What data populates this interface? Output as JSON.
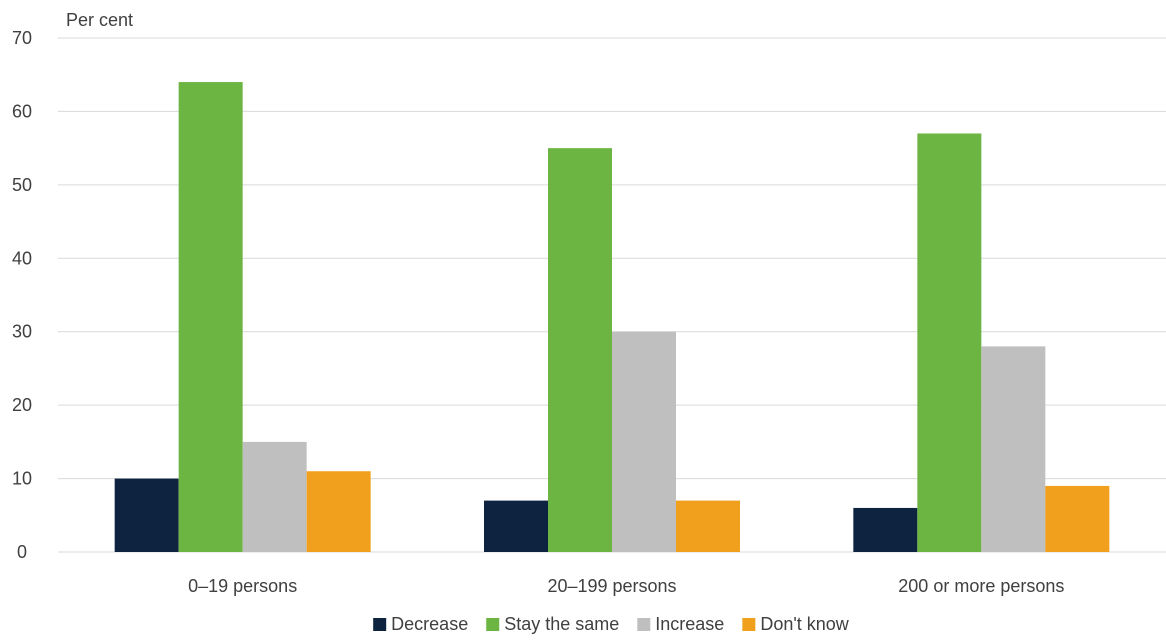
{
  "chart_data": {
    "type": "bar",
    "unit_label": "Per cent",
    "categories": [
      "0–19 persons",
      "20–199 persons",
      "200 or more persons"
    ],
    "series": [
      {
        "name": "Decrease",
        "color": "#0d2340",
        "values": [
          10,
          7,
          6
        ]
      },
      {
        "name": "Stay the same",
        "color": "#6db543",
        "values": [
          64,
          55,
          57
        ]
      },
      {
        "name": "Increase",
        "color": "#bfbfbf",
        "values": [
          15,
          30,
          28
        ]
      },
      {
        "name": "Don't know",
        "color": "#f0a01c",
        "values": [
          11,
          7,
          9
        ]
      }
    ],
    "ylim": [
      0,
      70
    ],
    "yticks": [
      0,
      10,
      20,
      30,
      40,
      50,
      60,
      70
    ],
    "grid": true,
    "legend_position": "bottom"
  }
}
